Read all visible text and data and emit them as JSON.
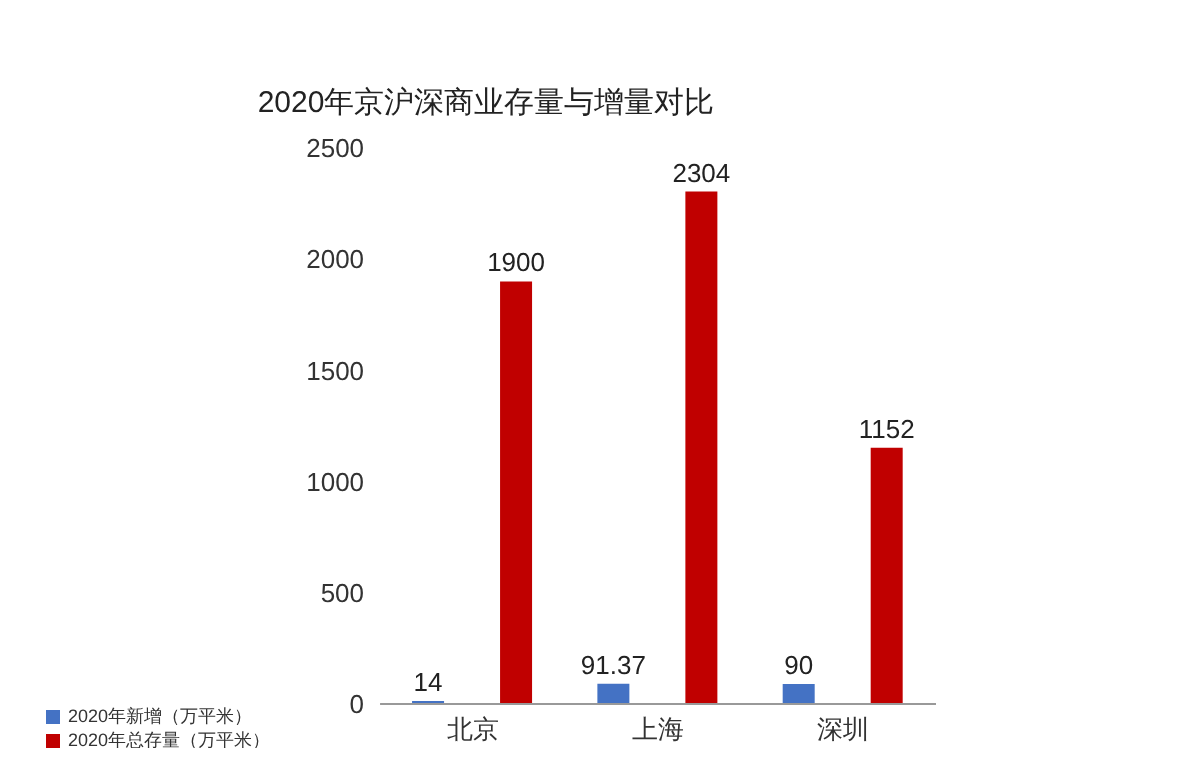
{
  "chart_data": {
    "type": "bar",
    "title": "2020年京沪深商业存量与增量对比",
    "categories": [
      "北京",
      "上海",
      "深圳"
    ],
    "series": [
      {
        "name": "2020年新增（万平米）",
        "color": "#4472c4",
        "values": [
          14,
          91.37,
          90
        ]
      },
      {
        "name": "2020年总存量（万平米）",
        "color": "#c00000",
        "values": [
          1900,
          2304,
          1152
        ]
      }
    ],
    "ylim": [
      0,
      2500
    ],
    "yticks": [
      0,
      500,
      1000,
      1500,
      2000,
      2500
    ],
    "grid": false,
    "legend": "bottom left",
    "data_labels": true
  }
}
